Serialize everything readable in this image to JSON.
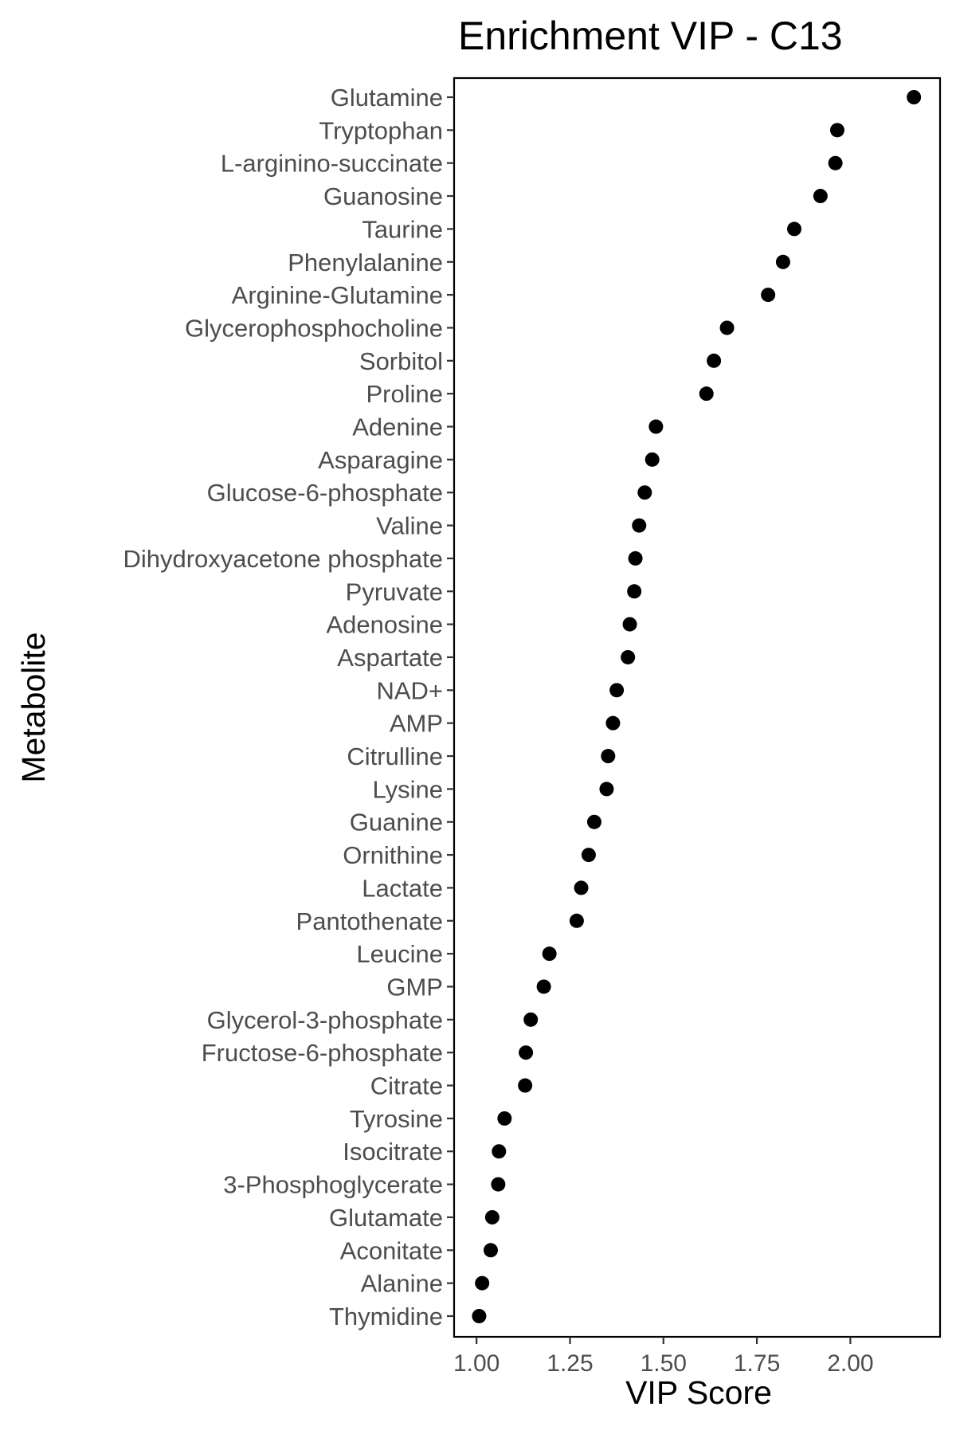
{
  "chart_data": {
    "type": "scatter",
    "title": "Enrichment VIP - C13",
    "xlabel": "VIP Score",
    "ylabel": "Metabolite",
    "xlim": [
      0.94,
      2.24
    ],
    "xticks": [
      1.0,
      1.25,
      1.5,
      1.75,
      2.0
    ],
    "xtick_labels": [
      "1.00",
      "1.25",
      "1.50",
      "1.75",
      "2.00"
    ],
    "grid": false,
    "legend": "none",
    "point_color": "#000000",
    "categories": [
      "Glutamine",
      "Tryptophan",
      "L-arginino-succinate",
      "Guanosine",
      "Taurine",
      "Phenylalanine",
      "Arginine-Glutamine",
      "Glycerophosphocholine",
      "Sorbitol",
      "Proline",
      "Adenine",
      "Asparagine",
      "Glucose-6-phosphate",
      "Valine",
      "Dihydroxyacetone phosphate",
      "Pyruvate",
      "Adenosine",
      "Aspartate",
      "NAD+",
      "AMP",
      "Citrulline",
      "Lysine",
      "Guanine",
      "Ornithine",
      "Lactate",
      "Pantothenate",
      "Leucine",
      "GMP",
      "Glycerol-3-phosphate",
      "Fructose-6-phosphate",
      "Citrate",
      "Tyrosine",
      "Isocitrate",
      "3-Phosphoglycerate",
      "Glutamate",
      "Aconitate",
      "Alanine",
      "Thymidine"
    ],
    "values": [
      2.17,
      1.965,
      1.96,
      1.92,
      1.85,
      1.82,
      1.78,
      1.67,
      1.635,
      1.615,
      1.48,
      1.47,
      1.45,
      1.435,
      1.425,
      1.422,
      1.41,
      1.405,
      1.375,
      1.365,
      1.352,
      1.348,
      1.315,
      1.3,
      1.28,
      1.268,
      1.195,
      1.18,
      1.145,
      1.132,
      1.13,
      1.075,
      1.06,
      1.058,
      1.042,
      1.038,
      1.015,
      1.007
    ]
  }
}
